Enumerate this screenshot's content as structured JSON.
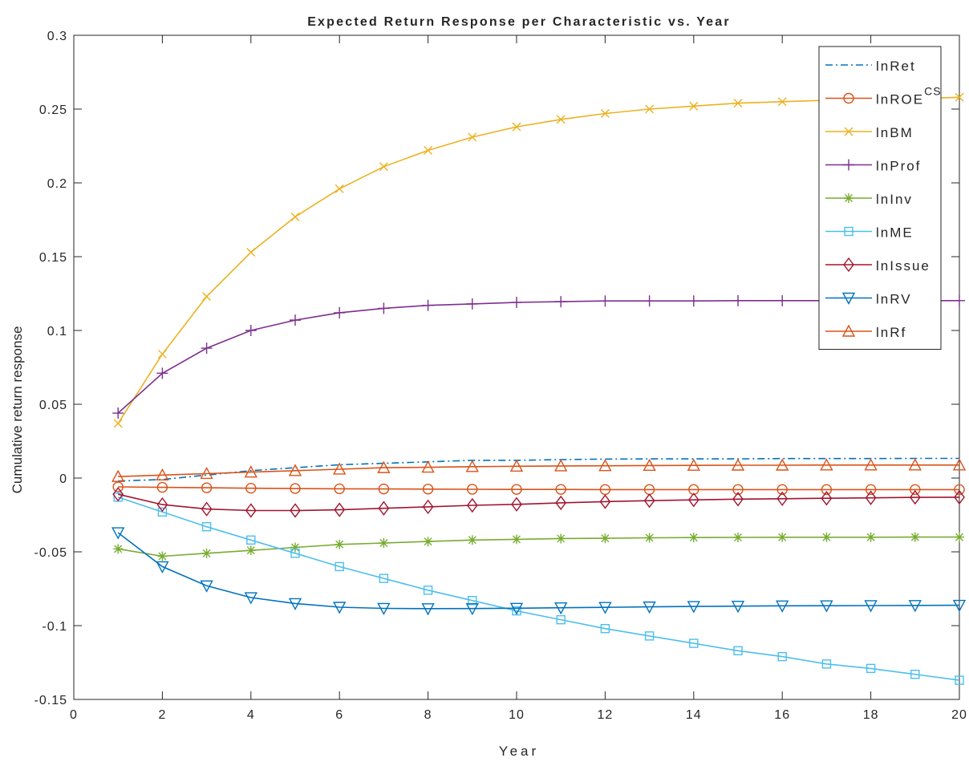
{
  "chart_data": {
    "type": "line",
    "title": "Expected Return Response per Characteristic vs. Year",
    "xlabel": "Year",
    "ylabel": "Cumulative return response",
    "xlim": [
      0,
      20
    ],
    "ylim": [
      -0.15,
      0.3
    ],
    "grid": false,
    "legend_position": "top-right",
    "x_ticks": [
      0,
      2,
      4,
      6,
      8,
      10,
      12,
      14,
      16,
      18,
      20
    ],
    "x_tick_labels": [
      "0",
      "2",
      "4",
      "6",
      "8",
      "10",
      "12",
      "14",
      "16",
      "18",
      "20"
    ],
    "y_ticks": [
      -0.15,
      -0.1,
      -0.05,
      0,
      0.05,
      0.1,
      0.15,
      0.2,
      0.25,
      0.3
    ],
    "y_tick_labels": [
      "-0.15",
      "-0.1",
      "-0.05",
      "0",
      "0.05",
      "0.1",
      "0.15",
      "0.2",
      "0.25",
      "0.3"
    ],
    "x": [
      1,
      2,
      3,
      4,
      5,
      6,
      7,
      8,
      9,
      10,
      11,
      12,
      13,
      14,
      15,
      16,
      17,
      18,
      19,
      20
    ],
    "series": [
      {
        "name": "lnRet",
        "color": "#0072BD",
        "dash": "dashdot",
        "marker": "none",
        "values": [
          -0.002,
          -0.001,
          0.002,
          0.005,
          0.007,
          0.009,
          0.01,
          0.011,
          0.012,
          0.012,
          0.0125,
          0.0128,
          0.013,
          0.013,
          0.013,
          0.0132,
          0.0132,
          0.0132,
          0.0133,
          0.0133
        ]
      },
      {
        "name": "lnROE",
        "name_superscript": "CS",
        "color": "#D95319",
        "dash": "solid",
        "marker": "circle",
        "values": [
          -0.006,
          -0.0063,
          -0.0066,
          -0.0069,
          -0.0071,
          -0.0073,
          -0.0074,
          -0.0075,
          -0.0076,
          -0.0077,
          -0.0077,
          -0.0078,
          -0.0078,
          -0.0078,
          -0.0078,
          -0.0078,
          -0.0078,
          -0.0078,
          -0.0078,
          -0.0078
        ]
      },
      {
        "name": "lnBM",
        "color": "#EDB120",
        "dash": "solid",
        "marker": "x",
        "values": [
          0.037,
          0.084,
          0.123,
          0.153,
          0.177,
          0.196,
          0.211,
          0.222,
          0.231,
          0.238,
          0.243,
          0.247,
          0.25,
          0.252,
          0.254,
          0.255,
          0.256,
          0.257,
          0.257,
          0.258
        ]
      },
      {
        "name": "lnProf",
        "color": "#7E2F8E",
        "dash": "solid",
        "marker": "plus",
        "values": [
          0.044,
          0.071,
          0.088,
          0.1,
          0.107,
          0.112,
          0.115,
          0.117,
          0.118,
          0.119,
          0.1195,
          0.12,
          0.12,
          0.12,
          0.1202,
          0.1202,
          0.1202,
          0.1202,
          0.1202,
          0.1202
        ]
      },
      {
        "name": "lnInv",
        "color": "#77AC30",
        "dash": "solid",
        "marker": "asterisk",
        "values": [
          -0.048,
          -0.053,
          -0.051,
          -0.049,
          -0.047,
          -0.045,
          -0.044,
          -0.043,
          -0.042,
          -0.0415,
          -0.041,
          -0.0408,
          -0.0405,
          -0.0403,
          -0.0402,
          -0.0401,
          -0.0401,
          -0.0401,
          -0.04,
          -0.04
        ]
      },
      {
        "name": "lnME",
        "color": "#4DBEEE",
        "dash": "solid",
        "marker": "square",
        "values": [
          -0.013,
          -0.023,
          -0.033,
          -0.042,
          -0.051,
          -0.06,
          -0.068,
          -0.076,
          -0.083,
          -0.09,
          -0.096,
          -0.102,
          -0.107,
          -0.112,
          -0.117,
          -0.121,
          -0.126,
          -0.129,
          -0.133,
          -0.137
        ]
      },
      {
        "name": "lnIssue",
        "color": "#A2142F",
        "dash": "solid",
        "marker": "diamond",
        "values": [
          -0.011,
          -0.018,
          -0.021,
          -0.022,
          -0.022,
          -0.0215,
          -0.0205,
          -0.0195,
          -0.0185,
          -0.0178,
          -0.0168,
          -0.016,
          -0.0153,
          -0.0148,
          -0.0143,
          -0.014,
          -0.0137,
          -0.0134,
          -0.0131,
          -0.013
        ]
      },
      {
        "name": "lnRV",
        "color": "#0072BD",
        "dash": "solid",
        "marker": "triangle-down",
        "values": [
          -0.037,
          -0.06,
          -0.073,
          -0.081,
          -0.085,
          -0.0875,
          -0.0883,
          -0.0885,
          -0.0884,
          -0.0882,
          -0.0879,
          -0.0876,
          -0.0873,
          -0.087,
          -0.0868,
          -0.0866,
          -0.0865,
          -0.0864,
          -0.0863,
          -0.0862
        ]
      },
      {
        "name": "lnRf",
        "color": "#D95319",
        "dash": "solid",
        "marker": "triangle-up",
        "values": [
          0.001,
          0.002,
          0.003,
          0.004,
          0.005,
          0.006,
          0.007,
          0.0073,
          0.0077,
          0.008,
          0.0082,
          0.0083,
          0.0085,
          0.0086,
          0.0087,
          0.0087,
          0.0088,
          0.0088,
          0.0088,
          0.0088
        ]
      }
    ]
  }
}
